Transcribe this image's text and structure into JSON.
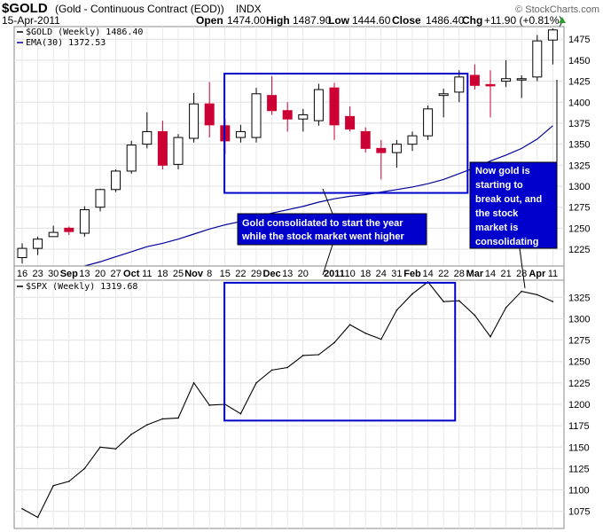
{
  "header": {
    "symbol": "$GOLD",
    "description": "(Gold - Continuous Contract (EOD))",
    "exchange": "INDX",
    "date": "15-Apr-2011",
    "open_label": "Open",
    "open_value": "1474.00",
    "high_label": "High",
    "high_value": "1487.90",
    "low_label": "Low",
    "low_value": "1444.60",
    "close_label": "Close",
    "close_value": "1486.40",
    "chg_label": "Chg",
    "chg_value": "+11.90 (+0.81%)",
    "brand": "© StockCharts.com"
  },
  "chart_data": [
    {
      "type": "candlestick",
      "legend": [
        "$GOLD (Weekly) 1486.40",
        "EMA(30) 1372.53"
      ],
      "ylim": [
        1205,
        1490
      ],
      "yticks": [
        1225,
        1250,
        1275,
        1300,
        1325,
        1350,
        1375,
        1400,
        1425,
        1450,
        1475
      ],
      "colors": {
        "up": "#000000",
        "down": "#cc0033",
        "ema": "#000099",
        "box": "#0000cc"
      },
      "xticks": [
        {
          "i": 0,
          "label": "16"
        },
        {
          "i": 1,
          "label": "23"
        },
        {
          "i": 2,
          "label": "30"
        },
        {
          "i": 3,
          "label": "Sep",
          "bold": true
        },
        {
          "i": 4,
          "label": "13"
        },
        {
          "i": 5,
          "label": "20"
        },
        {
          "i": 6,
          "label": "27"
        },
        {
          "i": 7,
          "label": "Oct",
          "bold": true
        },
        {
          "i": 8,
          "label": "11"
        },
        {
          "i": 9,
          "label": "18"
        },
        {
          "i": 10,
          "label": "25"
        },
        {
          "i": 11,
          "label": "Nov",
          "bold": true
        },
        {
          "i": 12,
          "label": "8"
        },
        {
          "i": 13,
          "label": "15"
        },
        {
          "i": 14,
          "label": "22"
        },
        {
          "i": 15,
          "label": "29"
        },
        {
          "i": 16,
          "label": "Dec",
          "bold": true
        },
        {
          "i": 17,
          "label": "13"
        },
        {
          "i": 18,
          "label": "20"
        },
        {
          "i": 20,
          "label": "2011",
          "bold": true
        },
        {
          "i": 21,
          "label": "10"
        },
        {
          "i": 22,
          "label": "18"
        },
        {
          "i": 23,
          "label": "24"
        },
        {
          "i": 24,
          "label": "31"
        },
        {
          "i": 25,
          "label": "Feb",
          "bold": true
        },
        {
          "i": 26,
          "label": "14"
        },
        {
          "i": 27,
          "label": "22"
        },
        {
          "i": 28,
          "label": "28"
        },
        {
          "i": 29,
          "label": "Mar",
          "bold": true
        },
        {
          "i": 30,
          "label": "14"
        },
        {
          "i": 31,
          "label": "21"
        },
        {
          "i": 32,
          "label": "28"
        },
        {
          "i": 33,
          "label": "Apr",
          "bold": true
        },
        {
          "i": 34,
          "label": "11"
        }
      ],
      "candles": [
        {
          "o": 1215,
          "h": 1232,
          "l": 1208,
          "c": 1226
        },
        {
          "o": 1226,
          "h": 1240,
          "l": 1218,
          "c": 1237
        },
        {
          "o": 1240,
          "h": 1253,
          "l": 1240,
          "c": 1245
        },
        {
          "o": 1250,
          "h": 1252,
          "l": 1242,
          "c": 1246
        },
        {
          "o": 1244,
          "h": 1276,
          "l": 1240,
          "c": 1272
        },
        {
          "o": 1275,
          "h": 1297,
          "l": 1270,
          "c": 1296
        },
        {
          "o": 1296,
          "h": 1320,
          "l": 1293,
          "c": 1318
        },
        {
          "o": 1318,
          "h": 1354,
          "l": 1315,
          "c": 1349
        },
        {
          "o": 1350,
          "h": 1388,
          "l": 1345,
          "c": 1365
        },
        {
          "o": 1365,
          "h": 1378,
          "l": 1320,
          "c": 1325
        },
        {
          "o": 1326,
          "h": 1362,
          "l": 1320,
          "c": 1358
        },
        {
          "o": 1357,
          "h": 1411,
          "l": 1352,
          "c": 1398
        },
        {
          "o": 1398,
          "h": 1424,
          "l": 1358,
          "c": 1373
        },
        {
          "o": 1372,
          "h": 1380,
          "l": 1338,
          "c": 1354
        },
        {
          "o": 1358,
          "h": 1373,
          "l": 1352,
          "c": 1365
        },
        {
          "o": 1358,
          "h": 1417,
          "l": 1352,
          "c": 1410
        },
        {
          "o": 1408,
          "h": 1431,
          "l": 1385,
          "c": 1390
        },
        {
          "o": 1390,
          "h": 1400,
          "l": 1365,
          "c": 1380
        },
        {
          "o": 1380,
          "h": 1392,
          "l": 1365,
          "c": 1385
        },
        {
          "o": 1378,
          "h": 1422,
          "l": 1372,
          "c": 1415
        },
        {
          "o": 1417,
          "h": 1423,
          "l": 1355,
          "c": 1373
        },
        {
          "o": 1383,
          "h": 1395,
          "l": 1365,
          "c": 1368
        },
        {
          "o": 1365,
          "h": 1370,
          "l": 1340,
          "c": 1345
        },
        {
          "o": 1345,
          "h": 1355,
          "l": 1308,
          "c": 1340
        },
        {
          "o": 1340,
          "h": 1355,
          "l": 1322,
          "c": 1350
        },
        {
          "o": 1350,
          "h": 1365,
          "l": 1342,
          "c": 1360
        },
        {
          "o": 1360,
          "h": 1396,
          "l": 1355,
          "c": 1392
        },
        {
          "o": 1408,
          "h": 1416,
          "l": 1382,
          "c": 1410
        },
        {
          "o": 1412,
          "h": 1438,
          "l": 1400,
          "c": 1430
        },
        {
          "o": 1432,
          "h": 1445,
          "l": 1415,
          "c": 1420
        },
        {
          "o": 1421,
          "h": 1438,
          "l": 1382,
          "c": 1420
        },
        {
          "o": 1425,
          "h": 1450,
          "l": 1418,
          "c": 1428
        },
        {
          "o": 1428,
          "h": 1432,
          "l": 1405,
          "c": 1428
        },
        {
          "o": 1430,
          "h": 1480,
          "l": 1425,
          "c": 1473
        },
        {
          "o": 1474,
          "h": 1488,
          "l": 1445,
          "c": 1486
        }
      ],
      "ema": [
        1190,
        1193,
        1197,
        1200,
        1205,
        1210,
        1216,
        1222,
        1228,
        1232,
        1237,
        1243,
        1249,
        1254,
        1258,
        1263,
        1268,
        1272,
        1276,
        1281,
        1285,
        1288,
        1290,
        1293,
        1296,
        1299,
        1303,
        1308,
        1315,
        1322,
        1330,
        1337,
        1345,
        1356,
        1372
      ],
      "box": {
        "from": 13.3,
        "to": 28.2,
        "top": 1434,
        "bottom": 1292
      },
      "annotations": [
        {
          "lines": [
            "Gold consolidated to start the year",
            "while the stock market went higher"
          ]
        },
        {
          "lines": [
            "Now gold is",
            "starting to",
            "break out, and",
            "the stock",
            "market is",
            "consolidating"
          ]
        }
      ]
    },
    {
      "type": "line",
      "legend": [
        "$SPX (Weekly) 1319.68"
      ],
      "ylim": [
        1055,
        1345
      ],
      "yticks": [
        1075,
        1100,
        1125,
        1150,
        1175,
        1200,
        1225,
        1250,
        1275,
        1300,
        1325
      ],
      "colors": {
        "line": "#000000",
        "box": "#0000cc"
      },
      "values": [
        1078,
        1068,
        1105,
        1110,
        1125,
        1150,
        1148,
        1165,
        1176,
        1183,
        1184,
        1225,
        1199,
        1200,
        1189,
        1225,
        1240,
        1243,
        1257,
        1258,
        1272,
        1293,
        1283,
        1276,
        1310,
        1329,
        1343,
        1320,
        1321,
        1304,
        1279,
        1313,
        1332,
        1328,
        1320
      ],
      "box": {
        "from": 13.3,
        "to": 27.4,
        "top": 1342,
        "bottom": 1181
      }
    }
  ]
}
